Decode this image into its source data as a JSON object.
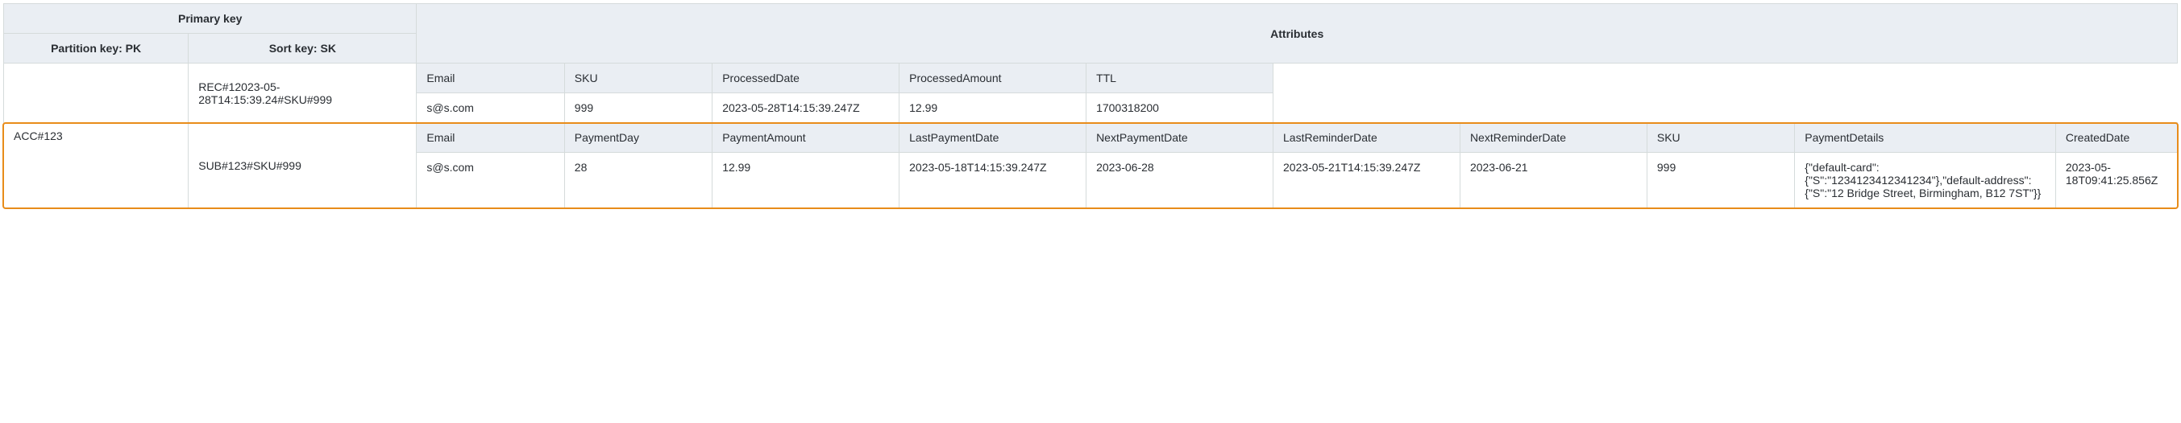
{
  "header": {
    "primary_key": "Primary key",
    "attributes": "Attributes",
    "partition_key": "Partition key: PK",
    "sort_key": "Sort key: SK"
  },
  "pk_value": "ACC#123",
  "rows": [
    {
      "sk": "REC#12023-05-28T14:15:39.24#SKU#999",
      "attrs": {
        "headers": [
          "Email",
          "SKU",
          "ProcessedDate",
          "ProcessedAmount",
          "TTL"
        ],
        "values": [
          "s@s.com",
          "999",
          "2023-05-28T14:15:39.247Z",
          "12.99",
          "1700318200"
        ]
      }
    },
    {
      "sk": "SUB#123#SKU#999",
      "attrs": {
        "headers": [
          "Email",
          "PaymentDay",
          "PaymentAmount",
          "LastPaymentDate",
          "NextPaymentDate",
          "LastReminderDate",
          "NextReminderDate",
          "SKU",
          "PaymentDetails",
          "CreatedDate"
        ],
        "values": [
          "s@s.com",
          "28",
          "12.99",
          "2023-05-18T14:15:39.247Z",
          "2023-06-28",
          "2023-05-21T14:15:39.247Z",
          "2023-06-21",
          "999",
          "{\"default-card\":{\"S\":\"1234123412341234\"},\"default-address\":{\"S\":\"12 Bridge Street, Birmingham, B12 7ST\"}}",
          "2023-05-18T09:41:25.856Z"
        ]
      }
    }
  ],
  "colors": {
    "header_bg": "#eaeef3",
    "border": "#d5dbdb",
    "highlight": "#e88c1a",
    "text": "#2a2e33"
  }
}
